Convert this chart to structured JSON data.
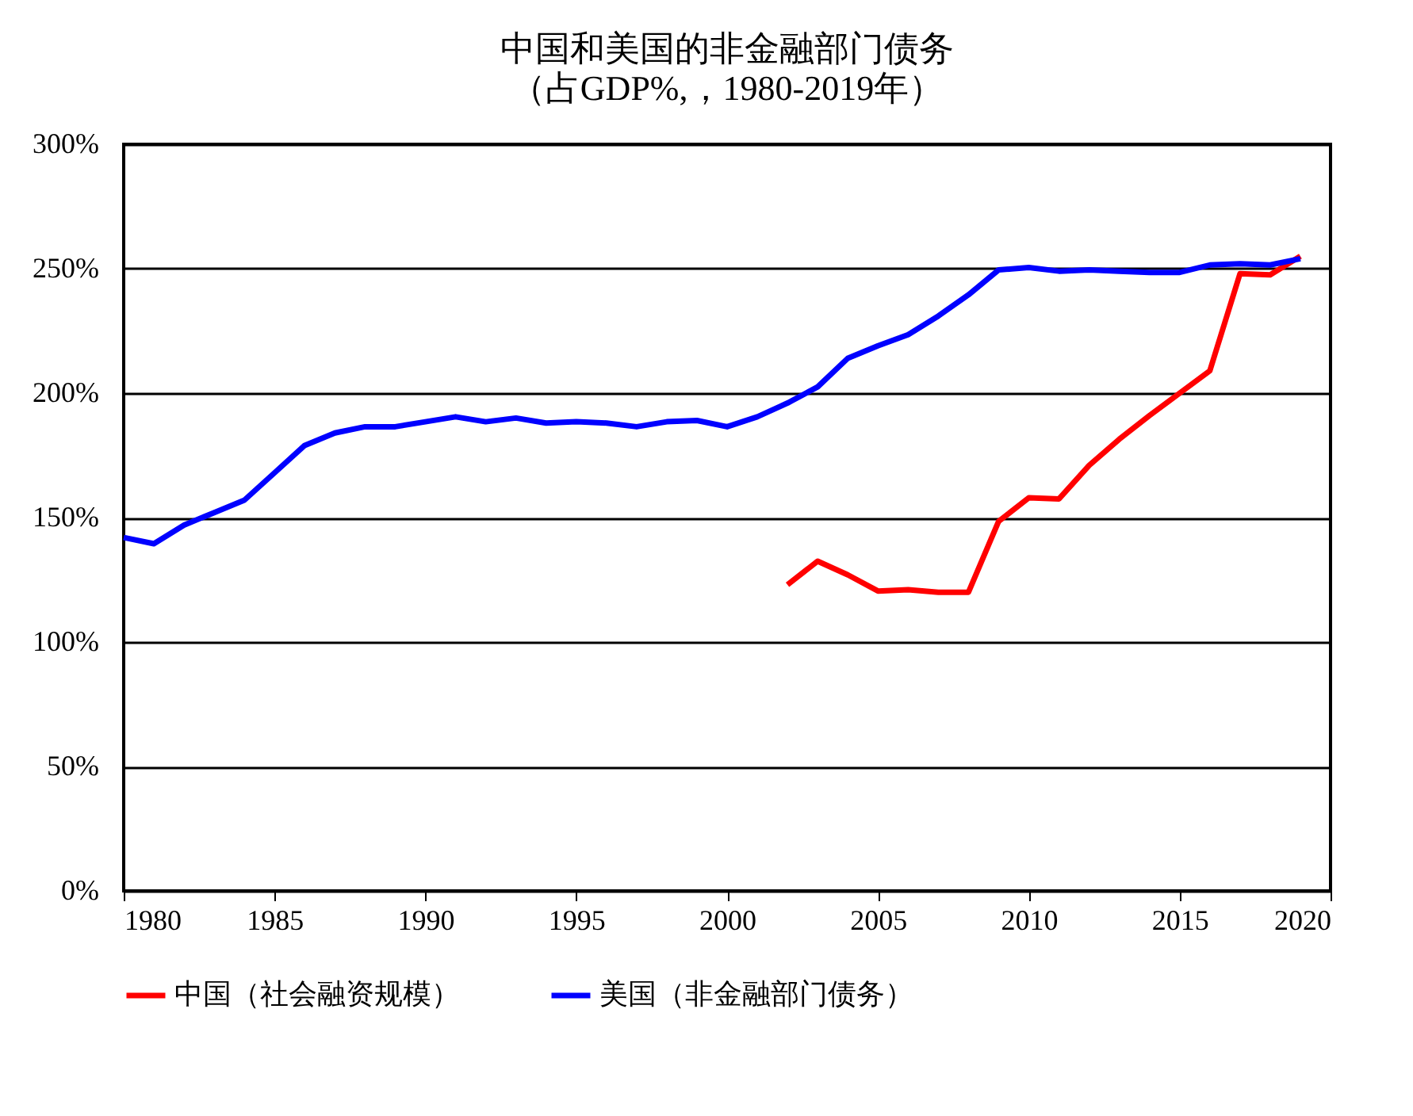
{
  "chart_data": {
    "type": "line",
    "title": "中国和美国的非金融部门债务",
    "subtitle": "（占GDP%,，1980-2019年）",
    "xlim": [
      1980,
      2020
    ],
    "xticks": [
      1980,
      1985,
      1990,
      1995,
      2000,
      2005,
      2010,
      2015,
      2020
    ],
    "ylim": [
      0,
      300
    ],
    "yticks": [
      {
        "value": 0,
        "label": "0%"
      },
      {
        "value": 50,
        "label": "50%"
      },
      {
        "value": 100,
        "label": "100%"
      },
      {
        "value": 150,
        "label": "150%"
      },
      {
        "value": 200,
        "label": "200%"
      },
      {
        "value": 250,
        "label": "250%"
      },
      {
        "value": 300,
        "label": "300%"
      }
    ],
    "grid": "y",
    "legend": "bottom",
    "line_style": "solid",
    "marker": "none",
    "series": [
      {
        "name": "中国（社会融资规模）",
        "color": "#ff0000",
        "x": [
          2002,
          2003,
          2004,
          2005,
          2006,
          2007,
          2008,
          2009,
          2010,
          2011,
          2012,
          2013,
          2014,
          2015,
          2016,
          2017,
          2018,
          2019
        ],
        "values": [
          123,
          132.5,
          127,
          120.5,
          121,
          120,
          120,
          148.5,
          158,
          157.5,
          171,
          181.5,
          191,
          200,
          209,
          248,
          247.5,
          255
        ]
      },
      {
        "name": "美国（非金融部门债务）",
        "color": "#0000ff",
        "x": [
          1980,
          1981,
          1982,
          1983,
          1984,
          1985,
          1986,
          1987,
          1988,
          1989,
          1990,
          1991,
          1992,
          1993,
          1994,
          1995,
          1996,
          1997,
          1998,
          1999,
          2000,
          2001,
          2002,
          2003,
          2004,
          2005,
          2006,
          2007,
          2008,
          2009,
          2010,
          2011,
          2012,
          2013,
          2014,
          2015,
          2016,
          2017,
          2018,
          2019
        ],
        "values": [
          142,
          139.5,
          147,
          152,
          157,
          168,
          179,
          184,
          186.5,
          186.5,
          188.5,
          190.5,
          188.5,
          190,
          188,
          188.5,
          188,
          186.5,
          188.5,
          189,
          186.5,
          190.5,
          196,
          202.5,
          214,
          219,
          223.5,
          231,
          239.5,
          249.5,
          250.5,
          249,
          249.5,
          249,
          248.5,
          248.5,
          251.5,
          252,
          251.5,
          254
        ]
      }
    ]
  }
}
